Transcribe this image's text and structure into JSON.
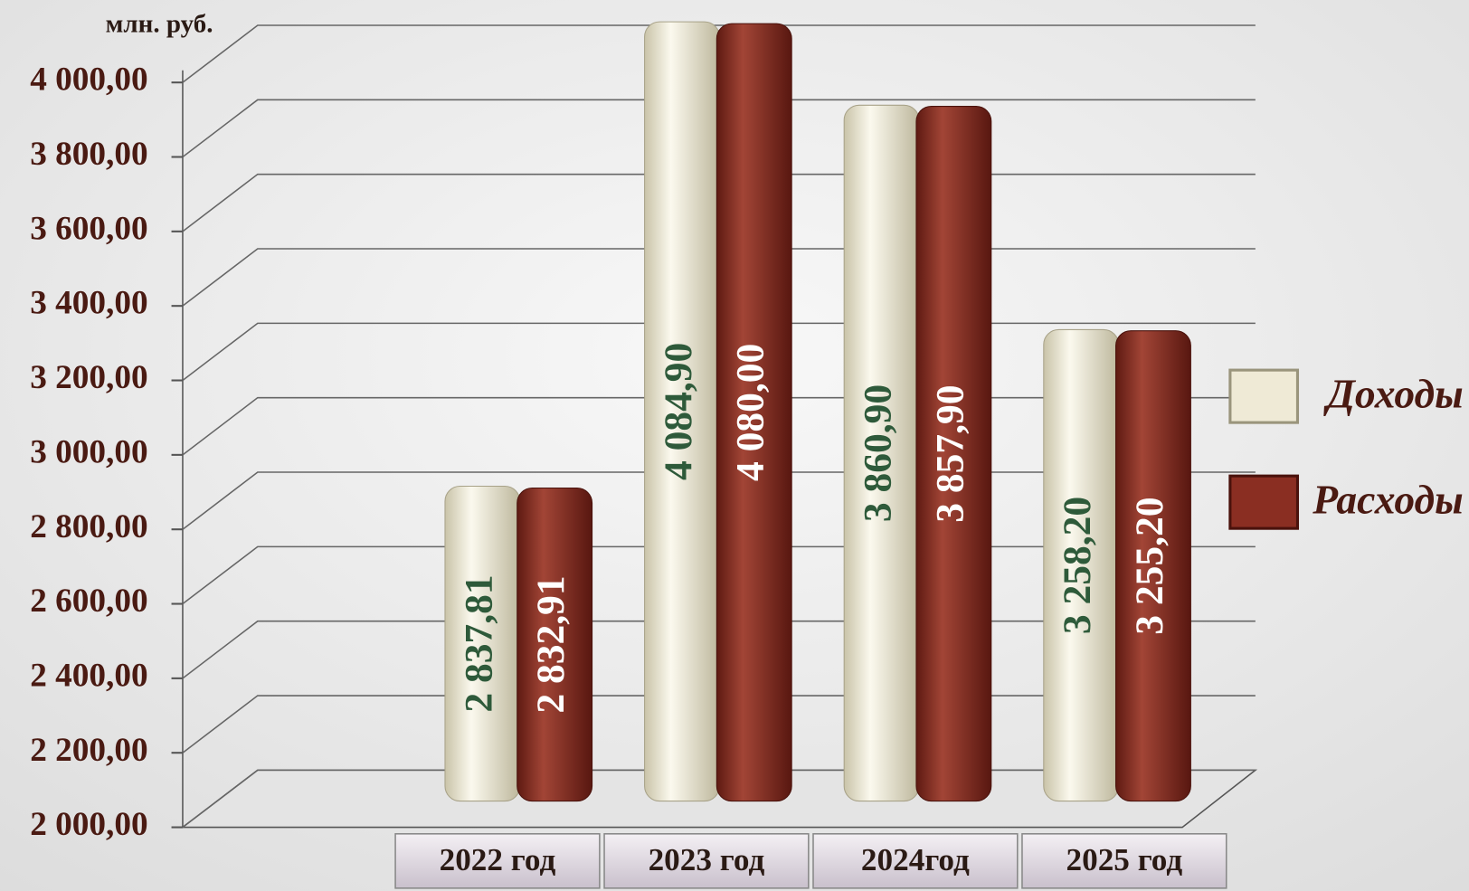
{
  "chart_data": {
    "type": "bar",
    "y_axis_label": "млн. руб.",
    "categories": [
      "2022 год",
      "2023 год",
      "2024год",
      "2025 год"
    ],
    "series": [
      {
        "name": "Доходы",
        "color": "#efead6",
        "values": [
          2837.81,
          4084.9,
          3860.9,
          3258.2
        ],
        "value_labels": [
          "2 837,81",
          "4 084,90",
          "3 860,90",
          "3 258,20"
        ]
      },
      {
        "name": "Расходы",
        "color": "#8a2e22",
        "values": [
          2832.91,
          4080.0,
          3857.9,
          3255.2
        ],
        "value_labels": [
          "2 832,91",
          "4 080,00",
          "3 857,90",
          "3 255,20"
        ]
      }
    ],
    "ylim": [
      2000,
      4000
    ],
    "yticks": [
      {
        "value": 2000,
        "label": "2 000,00"
      },
      {
        "value": 2200,
        "label": "2 200,00"
      },
      {
        "value": 2400,
        "label": "2 400,00"
      },
      {
        "value": 2600,
        "label": "2 600,00"
      },
      {
        "value": 2800,
        "label": "2 800,00"
      },
      {
        "value": 3000,
        "label": "3 000,00"
      },
      {
        "value": 3200,
        "label": "3 200,00"
      },
      {
        "value": 3400,
        "label": "3 400,00"
      },
      {
        "value": 3600,
        "label": "3 600,00"
      },
      {
        "value": 3800,
        "label": "3 800,00"
      },
      {
        "value": 4000,
        "label": "4 000,00"
      }
    ],
    "grid": true,
    "legend": "right"
  }
}
